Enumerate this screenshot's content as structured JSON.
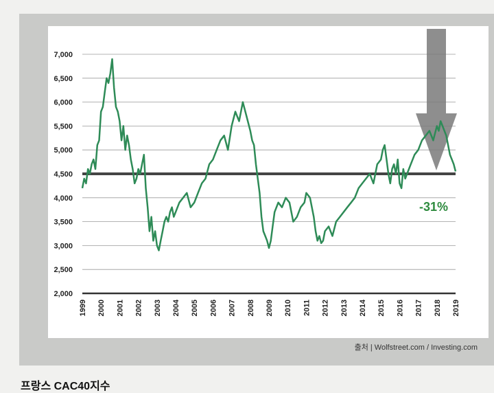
{
  "source": "출처 | Wolfstreet.com / Investing.com",
  "footer_title": "프랑스 CAC40지수",
  "colors": {
    "line": "#2e8b57",
    "baseline": "#444444",
    "arrow": "#7a7a7a",
    "annotation": "#2e8b3e"
  },
  "chart_data": {
    "type": "line",
    "title": "",
    "xlabel": "",
    "ylabel": "",
    "ylim": [
      2000,
      7000
    ],
    "yticks": [
      "7,000",
      "6,500",
      "6,000",
      "5,500",
      "5,000",
      "4,500",
      "4,000",
      "3,500",
      "3,000",
      "2,500",
      "2,000"
    ],
    "xticks": [
      "1999",
      "2000",
      "2001",
      "2002",
      "2003",
      "2004",
      "2005",
      "2006",
      "2007",
      "2008",
      "2009",
      "2010",
      "2011",
      "2012",
      "2013",
      "2014",
      "2015",
      "2016",
      "2017",
      "2018",
      "2019"
    ],
    "grid": true,
    "reference_line": 4500,
    "annotation": "-31%",
    "series": [
      {
        "x": [
          1999.0,
          1999.1,
          1999.2,
          1999.3,
          1999.4,
          1999.5,
          1999.6,
          1999.7,
          1999.8,
          1999.9,
          2000.0,
          2000.1,
          2000.2,
          2000.3,
          2000.4,
          2000.5,
          2000.6,
          2000.7,
          2000.8,
          2000.9,
          2001.0,
          2001.1,
          2001.2,
          2001.3,
          2001.4,
          2001.5,
          2001.6,
          2001.7,
          2001.8,
          2001.9,
          2002.0,
          2002.1,
          2002.2,
          2002.3,
          2002.4,
          2002.5,
          2002.6,
          2002.7,
          2002.8,
          2002.9,
          2003.0,
          2003.1,
          2003.2,
          2003.3,
          2003.4,
          2003.5,
          2003.6,
          2003.7,
          2003.8,
          2003.9,
          2004.0,
          2004.2,
          2004.4,
          2004.6,
          2004.8,
          2005.0,
          2005.2,
          2005.4,
          2005.6,
          2005.8,
          2006.0,
          2006.2,
          2006.4,
          2006.6,
          2006.8,
          2007.0,
          2007.2,
          2007.4,
          2007.6,
          2007.8,
          2008.0,
          2008.1,
          2008.2,
          2008.3,
          2008.4,
          2008.5,
          2008.6,
          2008.7,
          2008.8,
          2008.9,
          2009.0,
          2009.1,
          2009.2,
          2009.3,
          2009.5,
          2009.7,
          2009.9,
          2010.1,
          2010.3,
          2010.5,
          2010.7,
          2010.9,
          2011.0,
          2011.2,
          2011.4,
          2011.5,
          2011.6,
          2011.7,
          2011.8,
          2011.9,
          2012.0,
          2012.2,
          2012.4,
          2012.6,
          2012.8,
          2013.0,
          2013.2,
          2013.4,
          2013.6,
          2013.8,
          2014.0,
          2014.2,
          2014.4,
          2014.6,
          2014.8,
          2015.0,
          2015.1,
          2015.2,
          2015.3,
          2015.4,
          2015.5,
          2015.6,
          2015.7,
          2015.8,
          2015.9,
          2016.0,
          2016.1,
          2016.2,
          2016.3,
          2016.4,
          2016.6,
          2016.8,
          2017.0,
          2017.2,
          2017.4,
          2017.6,
          2017.8,
          2018.0,
          2018.1,
          2018.2,
          2018.3,
          2018.4,
          2018.5,
          2018.6,
          2018.7,
          2018.8,
          2018.9,
          2019.0
        ],
        "values": [
          4200,
          4400,
          4300,
          4600,
          4500,
          4700,
          4800,
          4600,
          5100,
          5200,
          5800,
          5900,
          6200,
          6500,
          6400,
          6600,
          6900,
          6300,
          5900,
          5800,
          5600,
          5200,
          5500,
          5000,
          5300,
          5100,
          4800,
          4600,
          4300,
          4400,
          4600,
          4500,
          4700,
          4900,
          4200,
          3800,
          3300,
          3600,
          3100,
          3300,
          3000,
          2900,
          3100,
          3300,
          3500,
          3600,
          3500,
          3700,
          3800,
          3600,
          3700,
          3900,
          4000,
          4100,
          3800,
          3900,
          4100,
          4300,
          4400,
          4700,
          4800,
          5000,
          5200,
          5300,
          5000,
          5500,
          5800,
          5600,
          6000,
          5700,
          5400,
          5200,
          5100,
          4700,
          4400,
          4100,
          3600,
          3300,
          3200,
          3100,
          2950,
          3100,
          3400,
          3700,
          3900,
          3800,
          4000,
          3900,
          3500,
          3600,
          3800,
          3900,
          4100,
          4000,
          3600,
          3300,
          3100,
          3200,
          3050,
          3100,
          3300,
          3400,
          3200,
          3500,
          3600,
          3700,
          3800,
          3900,
          4000,
          4200,
          4300,
          4400,
          4500,
          4300,
          4700,
          4800,
          5000,
          5100,
          4800,
          4500,
          4300,
          4600,
          4700,
          4500,
          4800,
          4300,
          4200,
          4600,
          4400,
          4500,
          4700,
          4900,
          5000,
          5200,
          5300,
          5400,
          5200,
          5500,
          5400,
          5600,
          5500,
          5400,
          5300,
          5100,
          4900,
          4800,
          4700,
          4550
        ]
      }
    ]
  }
}
